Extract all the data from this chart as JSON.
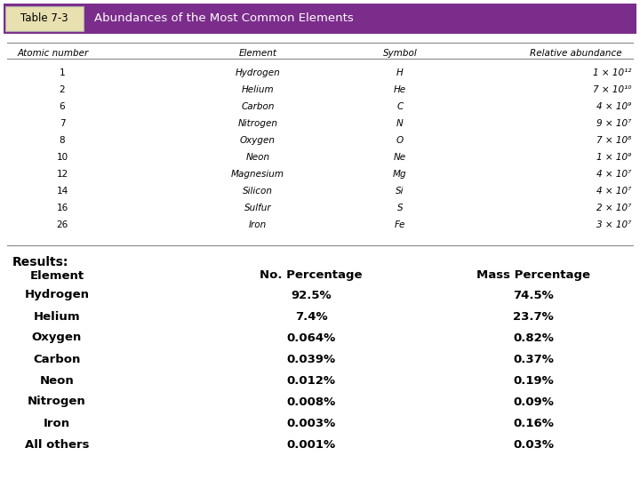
{
  "title_label": "Table 7-3",
  "title_text": "Abundances of the Most Common Elements",
  "title_bg": "#7B2D8B",
  "title_label_bg": "#E8E0B0",
  "table_headers": [
    "Atomic number",
    "Element",
    "Symbol",
    "Relative abundance"
  ],
  "table_rows": [
    [
      "1",
      "Hydrogen",
      "H",
      "1 × 10¹²"
    ],
    [
      "2",
      "Helium",
      "He",
      "7 × 10¹⁰"
    ],
    [
      "6",
      "Carbon",
      "C",
      "4 × 10⁹"
    ],
    [
      "7",
      "Nitrogen",
      "N",
      "9 × 10⁷"
    ],
    [
      "8",
      "Oxygen",
      "O",
      "7 × 10⁸"
    ],
    [
      "10",
      "Neon",
      "Ne",
      "1 × 10⁹"
    ],
    [
      "12",
      "Magnesium",
      "Mg",
      "4 × 10⁷"
    ],
    [
      "14",
      "Silicon",
      "Si",
      "4 × 10⁷"
    ],
    [
      "16",
      "Sulfur",
      "S",
      "2 × 10⁷"
    ],
    [
      "26",
      "Iron",
      "Fe",
      "3 × 10⁷"
    ]
  ],
  "results_label": "Results:",
  "results_headers": [
    "Element",
    "No. Percentage",
    "Mass Percentage"
  ],
  "results_rows": [
    [
      "Hydrogen",
      "92.5%",
      "74.5%"
    ],
    [
      "Helium",
      "7.4%",
      "23.7%"
    ],
    [
      "Oxygen",
      "0.064%",
      "0.82%"
    ],
    [
      "Carbon",
      "0.039%",
      "0.37%"
    ],
    [
      "Neon",
      "0.012%",
      "0.19%"
    ],
    [
      "Nitrogen",
      "0.008%",
      "0.09%"
    ],
    [
      "Iron",
      "0.003%",
      "0.16%"
    ],
    [
      "All others",
      "0.001%",
      "0.03%"
    ]
  ],
  "bg_color": "#FFFFFF",
  "text_color": "#000000",
  "header_text_color": "#FFFFFF",
  "table_line_color": "#888888",
  "figw": 7.2,
  "figh": 5.4,
  "dpi": 100
}
